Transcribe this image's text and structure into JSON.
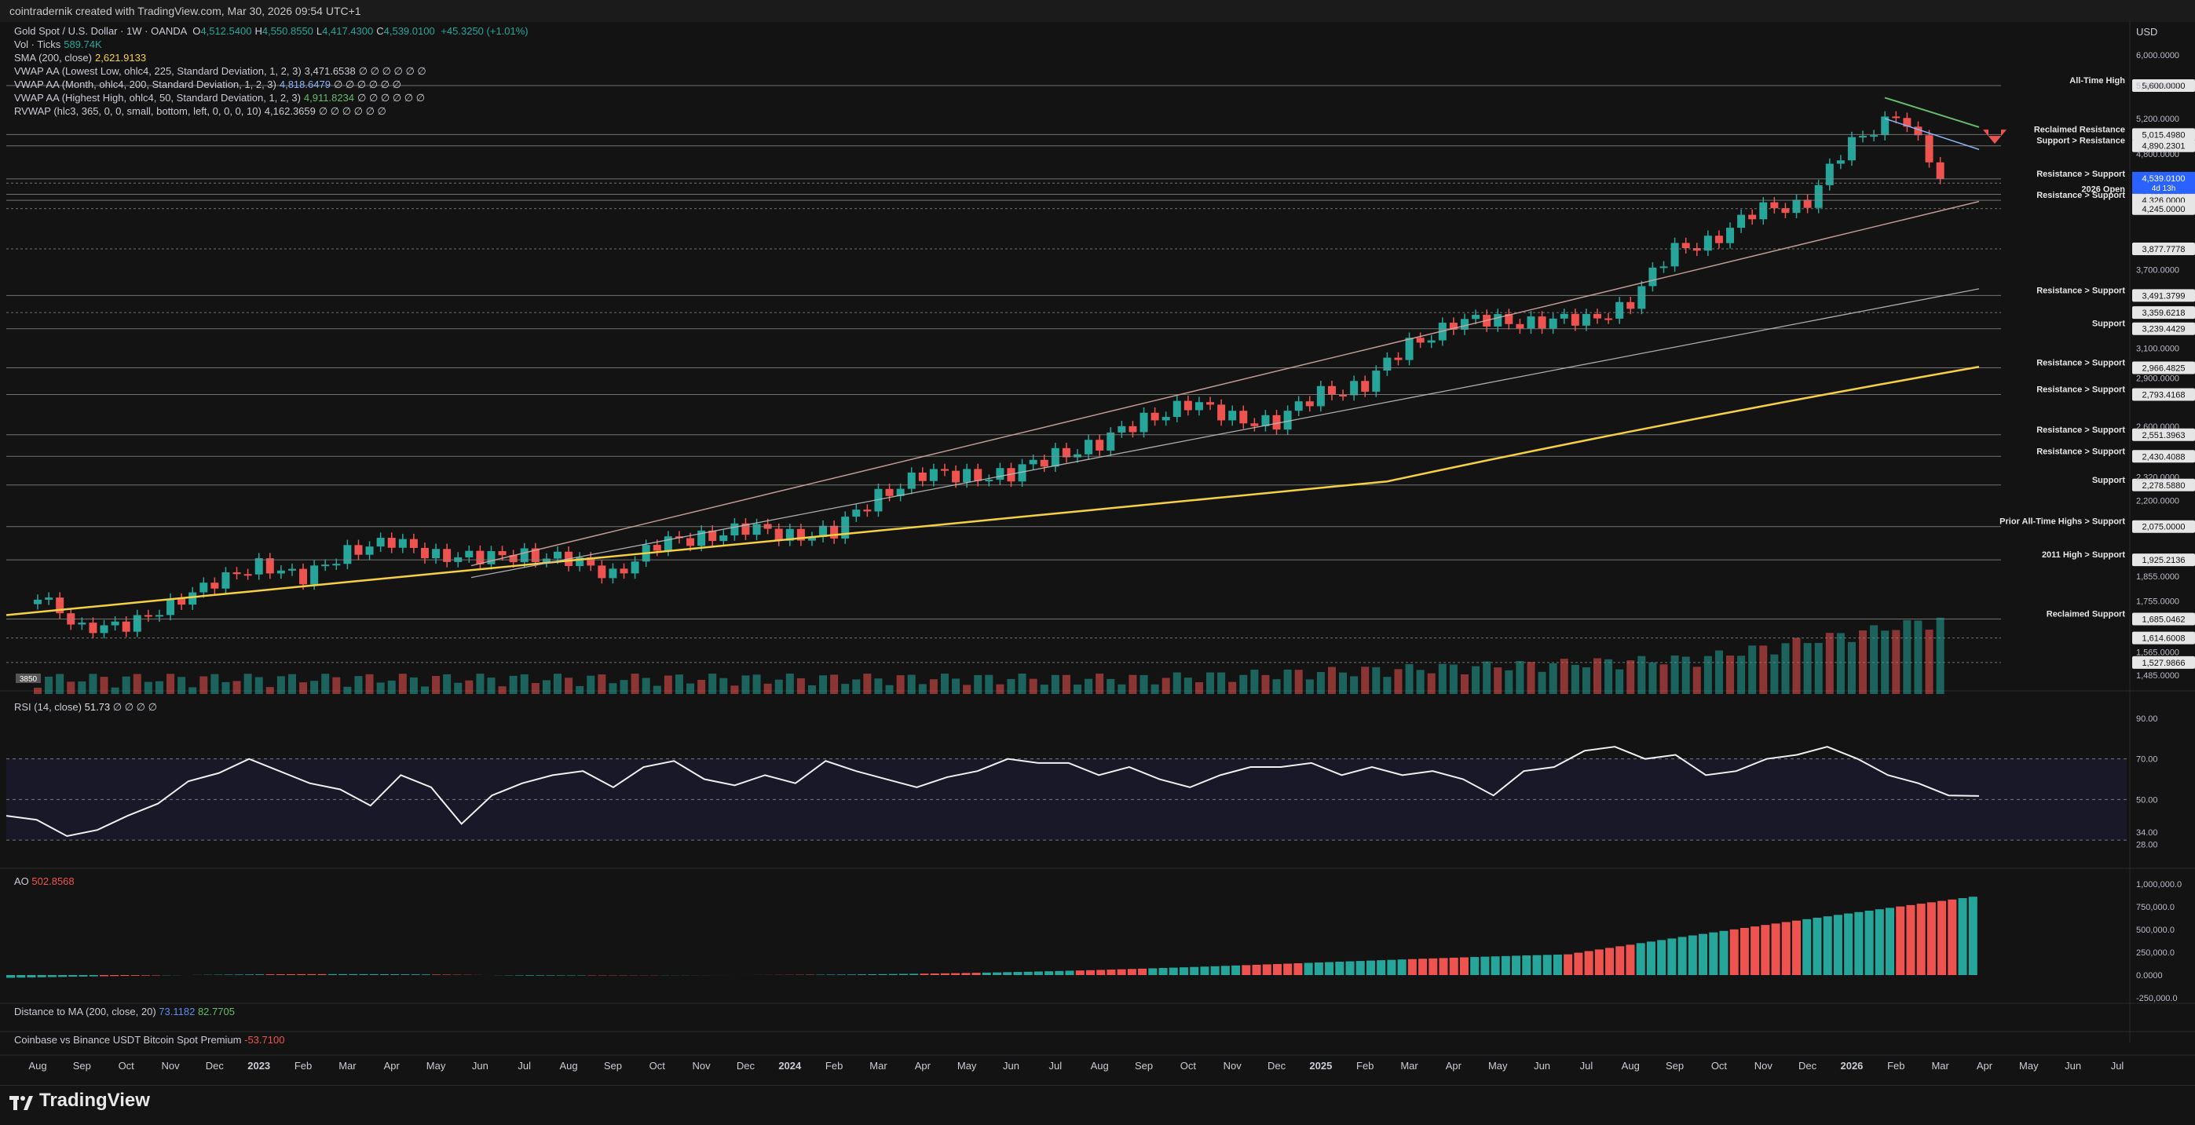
{
  "header": {
    "attribution": "cointradernik created with TradingView.com, Mar 30, 2026 09:54 UTC+1"
  },
  "legend": {
    "symbol": "Gold Spot / U.S. Dollar · 1W · OANDA",
    "ohlc": [
      {
        "k": "O",
        "v": "4,512.5400"
      },
      {
        "k": "H",
        "v": "4,550.8550"
      },
      {
        "k": "L",
        "v": "4,417.4300"
      },
      {
        "k": "C",
        "v": "4,539.0100"
      }
    ],
    "change": "+45.3250 (+1.01%)",
    "lines": [
      {
        "label": "Vol · Ticks",
        "value": "589.74K",
        "color": "#26a69a"
      },
      {
        "label": "SMA (200, close)",
        "value": "2,621.9133",
        "color": "#f5d142"
      },
      {
        "label": "VWAP AA (Lowest Low, ohlc4, 225, Standard Deviation, 1, 2, 3)",
        "value": "3,471.6538",
        "color": "#c9ccd4",
        "tail": "∅ ∅ ∅ ∅ ∅ ∅"
      },
      {
        "label": "VWAP AA (Month, ohlc4, 200, Standard Deviation, 1, 2, 3)",
        "value": "4,818.6479",
        "color": "#8ab4f8",
        "tail": "∅ ∅ ∅ ∅ ∅ ∅"
      },
      {
        "label": "VWAP AA (Highest High, ohlc4, 50, Standard Deviation, 1, 2, 3)",
        "value": "4,911.8234",
        "color": "#66bb6a",
        "tail": "∅ ∅ ∅ ∅ ∅ ∅"
      },
      {
        "label": "RVWAP (hlc3, 365, 0, 0, small, bottom, left, 0, 0, 0, 10)",
        "value": "4,162.3659",
        "color": "#c9ccd4",
        "tail": "∅ ∅ ∅ ∅ ∅ ∅"
      }
    ]
  },
  "panes": {
    "rsi": {
      "label": "RSI (14, close)",
      "value": "51.73",
      "tail": "∅ ∅ ∅ ∅"
    },
    "ao": {
      "label": "AO",
      "value": "502.8568"
    },
    "dist": {
      "label": "Distance to MA (200, close, 20)",
      "v1": "73.1182",
      "v2": "82.7705"
    },
    "premium": {
      "label": "Coinbase vs Binance USDT Bitcoin Spot Premium",
      "value": "-53.7100"
    }
  },
  "branding": {
    "name": "TradingView"
  },
  "colors": {
    "up": "#26a69a",
    "down": "#ef5350",
    "sma": "#f5d142",
    "bg": "#131313"
  },
  "chart_data": {
    "type": "candlestick",
    "symbol": "Gold Spot / U.S. Dollar",
    "timeframe": "1W",
    "currency": "USD",
    "x_labels": [
      "Aug",
      "Sep",
      "Oct",
      "Nov",
      "Dec",
      "2023",
      "Feb",
      "Mar",
      "Apr",
      "May",
      "Jun",
      "Jul",
      "Aug",
      "Sep",
      "Oct",
      "Nov",
      "Dec",
      "2024",
      "Feb",
      "Mar",
      "Apr",
      "May",
      "Jun",
      "Jul",
      "Aug",
      "Sep",
      "Oct",
      "Nov",
      "Dec",
      "2025",
      "Feb",
      "Mar",
      "Apr",
      "May",
      "Jun",
      "Jul",
      "Aug",
      "Sep",
      "Oct",
      "Nov",
      "Dec",
      "2026",
      "Feb",
      "Mar",
      "Apr",
      "May",
      "Jun",
      "Jul"
    ],
    "close_path": [
      [
        "2022-08",
        1760
      ],
      [
        "2022-09",
        1670
      ],
      [
        "2022-10",
        1640
      ],
      [
        "2022-11",
        1760
      ],
      [
        "2022-12",
        1810
      ],
      [
        "2023-01",
        1925
      ],
      [
        "2023-02",
        1830
      ],
      [
        "2023-03",
        1980
      ],
      [
        "2023-04",
        1990
      ],
      [
        "2023-05",
        1960
      ],
      [
        "2023-06",
        1920
      ],
      [
        "2023-07",
        1960
      ],
      [
        "2023-08",
        1915
      ],
      [
        "2023-09",
        1870
      ],
      [
        "2023-10",
        1985
      ],
      [
        "2023-11",
        2035
      ],
      [
        "2023-12",
        2060
      ],
      [
        "2024-01",
        2040
      ],
      [
        "2024-02",
        2045
      ],
      [
        "2024-03",
        2230
      ],
      [
        "2024-04",
        2330
      ],
      [
        "2024-05",
        2330
      ],
      [
        "2024-06",
        2330
      ],
      [
        "2024-07",
        2440
      ],
      [
        "2024-08",
        2500
      ],
      [
        "2024-09",
        2640
      ],
      [
        "2024-10",
        2740
      ],
      [
        "2024-11",
        2650
      ],
      [
        "2024-12",
        2625
      ],
      [
        "2025-01",
        2800
      ],
      [
        "2025-02",
        2860
      ],
      [
        "2025-03",
        3120
      ],
      [
        "2025-04",
        3290
      ],
      [
        "2025-05",
        3290
      ],
      [
        "2025-06",
        3300
      ],
      [
        "2025-07",
        3290
      ],
      [
        "2025-08",
        3450
      ],
      [
        "2025-09",
        3860
      ],
      [
        "2025-10",
        4000
      ],
      [
        "2025-11",
        4230
      ],
      [
        "2025-12",
        4330
      ],
      [
        "2026-01",
        4900
      ],
      [
        "2026-02",
        5300
      ],
      [
        "2026-03",
        4539
      ]
    ],
    "last_price": "4,539.0100",
    "countdown": "4d 13h",
    "all_time_high": "5,600.0000",
    "sma200_last": "2,621.9133",
    "price_axis_ticks": [
      "6,000.0000",
      "5,600.0000",
      "5,200.0000",
      "4,800.0000",
      "3,700.0000",
      "3,100.0000",
      "2,900.0000",
      "2,600.0000",
      "2,320.0000",
      "2,200.0000",
      "1,855.0000",
      "1,755.0000",
      "1,565.0000",
      "1,485.0000"
    ],
    "horizontal_levels": [
      {
        "label": "All-Time High",
        "value": 5600,
        "tag": "5,600.0000"
      },
      {
        "label": "Reclaimed Resistance",
        "value": 5015.498,
        "tag": "5,015.4980"
      },
      {
        "label": "Support > Resistance",
        "value": 4890.2301,
        "tag": "4,890.2301"
      },
      {
        "label": "Resistance > Support",
        "value": 4539.01,
        "tag": "4,539.0100"
      },
      {
        "label": "",
        "value": 4495.8184,
        "tag": "4,495.8184"
      },
      {
        "label": "2026 Open",
        "value": 4384,
        "tag": "4,384.0000"
      },
      {
        "label": "Resistance > Support",
        "value": 4326,
        "tag": "4,326.0000"
      },
      {
        "label": "",
        "value": 4245,
        "tag": "4,245.0000"
      },
      {
        "label": "",
        "value": 3877.7778,
        "tag": "3,877.7778"
      },
      {
        "label": "Resistance > Support",
        "value": 3491.3799,
        "tag": "3,491.3799"
      },
      {
        "label": "",
        "value": 3359.6218,
        "tag": "3,359.6218"
      },
      {
        "label": "Support",
        "value": 3239.4429,
        "tag": "3,239.4429"
      },
      {
        "label": "Resistance > Support",
        "value": 2966.4825,
        "tag": "2,966.4825"
      },
      {
        "label": "Resistance > Support",
        "value": 2793.4168,
        "tag": "2,793.4168"
      },
      {
        "label": "Resistance > Support",
        "value": 2551.3963,
        "tag": "2,551.3963"
      },
      {
        "label": "Resistance > Support",
        "value": 2430.4088,
        "tag": "2,430.4088"
      },
      {
        "label": "Support",
        "value": 2278.588,
        "tag": "2,278.5880"
      },
      {
        "label": "Prior All-Time Highs > Support",
        "value": 2075,
        "tag": "2,075.0000"
      },
      {
        "label": "2011 High > Support",
        "value": 1925.2136,
        "tag": "1,925.2136"
      },
      {
        "label": "Reclaimed Support",
        "value": 1685.0462,
        "tag": "1,685.0462"
      },
      {
        "label": "",
        "value": 1614.6008,
        "tag": "1,614.6008"
      },
      {
        "label": "",
        "value": 1527.9866,
        "tag": "1,527.9866"
      }
    ],
    "rsi": {
      "ticks": [
        "90.00",
        "70.00",
        "50.00",
        "34.00",
        "28.00"
      ],
      "bands": [
        70,
        50,
        30
      ],
      "path": [
        [
          0,
          42
        ],
        [
          3,
          40
        ],
        [
          6,
          32
        ],
        [
          9,
          35
        ],
        [
          12,
          42
        ],
        [
          15,
          48
        ],
        [
          18,
          59
        ],
        [
          21,
          63
        ],
        [
          24,
          70
        ],
        [
          27,
          64
        ],
        [
          30,
          58
        ],
        [
          33,
          55
        ],
        [
          36,
          47
        ],
        [
          39,
          62
        ],
        [
          42,
          56
        ],
        [
          45,
          38
        ],
        [
          48,
          52
        ],
        [
          51,
          58
        ],
        [
          54,
          62
        ],
        [
          57,
          64
        ],
        [
          60,
          56
        ],
        [
          63,
          66
        ],
        [
          66,
          69
        ],
        [
          69,
          60
        ],
        [
          72,
          57
        ],
        [
          75,
          62
        ],
        [
          78,
          58
        ],
        [
          81,
          69
        ],
        [
          84,
          64
        ],
        [
          87,
          60
        ],
        [
          90,
          56
        ],
        [
          93,
          61
        ],
        [
          96,
          64
        ],
        [
          99,
          70
        ],
        [
          102,
          68
        ],
        [
          105,
          68
        ],
        [
          108,
          62
        ],
        [
          111,
          66
        ],
        [
          114,
          60
        ],
        [
          117,
          56
        ],
        [
          120,
          62
        ],
        [
          123,
          66
        ],
        [
          126,
          66
        ],
        [
          129,
          68
        ],
        [
          132,
          62
        ],
        [
          135,
          66
        ],
        [
          138,
          62
        ],
        [
          141,
          64
        ],
        [
          144,
          60
        ],
        [
          147,
          52
        ],
        [
          150,
          64
        ],
        [
          153,
          66
        ],
        [
          156,
          74
        ],
        [
          159,
          76
        ],
        [
          162,
          70
        ],
        [
          165,
          72
        ],
        [
          168,
          62
        ],
        [
          171,
          64
        ],
        [
          174,
          70
        ],
        [
          177,
          72
        ],
        [
          180,
          76
        ],
        [
          183,
          70
        ],
        [
          186,
          62
        ],
        [
          189,
          58
        ],
        [
          192,
          52
        ],
        [
          195,
          51.73
        ]
      ]
    },
    "ao": {
      "ticks": [
        "1,000,000.0",
        "750,000.0",
        "500,000.0",
        "250,000.0",
        "0.0000",
        "-250,000.0"
      ],
      "last": "502.8568"
    },
    "volume_label": "3850"
  }
}
